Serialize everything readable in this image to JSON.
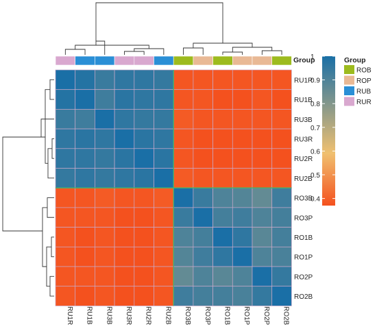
{
  "chart_data": {
    "type": "heatmap",
    "rows": [
      "RU1R",
      "RU1B",
      "RU3B",
      "RU3R",
      "RU2R",
      "RU2B",
      "RO3B",
      "RO3P",
      "RO1B",
      "RO1P",
      "RO2P",
      "RO2B"
    ],
    "cols": [
      "RU1R",
      "RU1B",
      "RU3B",
      "RU3R",
      "RU2R",
      "RU2B",
      "RO3B",
      "RO3P",
      "RO1B",
      "RO1P",
      "RO2P",
      "RO2B"
    ],
    "values": [
      [
        1.0,
        0.98,
        0.94,
        0.96,
        0.96,
        0.95,
        0.38,
        0.38,
        0.38,
        0.38,
        0.38,
        0.38
      ],
      [
        0.98,
        1.0,
        0.93,
        0.97,
        0.96,
        0.96,
        0.38,
        0.38,
        0.37,
        0.37,
        0.38,
        0.37
      ],
      [
        0.94,
        0.93,
        1.0,
        0.96,
        0.95,
        0.95,
        0.39,
        0.38,
        0.38,
        0.38,
        0.38,
        0.38
      ],
      [
        0.96,
        0.97,
        0.96,
        1.0,
        0.97,
        0.96,
        0.38,
        0.37,
        0.37,
        0.37,
        0.37,
        0.37
      ],
      [
        0.96,
        0.96,
        0.95,
        0.97,
        1.0,
        0.97,
        0.38,
        0.37,
        0.37,
        0.37,
        0.37,
        0.37
      ],
      [
        0.95,
        0.96,
        0.95,
        0.96,
        0.97,
        1.0,
        0.39,
        0.38,
        0.38,
        0.38,
        0.38,
        0.38
      ],
      [
        0.38,
        0.38,
        0.39,
        0.38,
        0.38,
        0.39,
        1.0,
        0.94,
        0.9,
        0.89,
        0.86,
        0.93
      ],
      [
        0.38,
        0.38,
        0.38,
        0.37,
        0.37,
        0.38,
        0.94,
        1.0,
        0.92,
        0.93,
        0.9,
        0.92
      ],
      [
        0.38,
        0.37,
        0.38,
        0.37,
        0.37,
        0.38,
        0.9,
        0.92,
        1.0,
        0.96,
        0.88,
        0.92
      ],
      [
        0.38,
        0.37,
        0.38,
        0.37,
        0.37,
        0.38,
        0.89,
        0.93,
        0.96,
        1.0,
        0.9,
        0.91
      ],
      [
        0.38,
        0.38,
        0.38,
        0.37,
        0.37,
        0.38,
        0.86,
        0.9,
        0.88,
        0.9,
        1.0,
        0.95
      ],
      [
        0.38,
        0.37,
        0.38,
        0.37,
        0.37,
        0.38,
        0.93,
        0.92,
        0.92,
        0.91,
        0.95,
        1.0
      ]
    ],
    "group_annotation": {
      "title": "Group",
      "values": [
        "RUR",
        "RUB",
        "RUB",
        "RUR",
        "RUR",
        "RUB",
        "ROB",
        "ROP",
        "ROB",
        "ROP",
        "ROP",
        "ROB"
      ]
    },
    "colorbar": {
      "ticks": [
        1,
        0.9,
        0.8,
        0.7,
        0.6,
        0.5,
        0.4
      ],
      "tick_labels": [
        "1",
        "0.9",
        "0.8",
        "0.7",
        "0.6",
        "0.5",
        "0.4"
      ],
      "range": [
        0.37,
        1.0
      ],
      "low_color": "#f4511e",
      "mid_color": "#f0c070",
      "high_color": "#1a6fa6"
    },
    "legend": {
      "title": "Group",
      "placement": "right",
      "items": [
        {
          "label": "ROB",
          "color": "#9dbb1e"
        },
        {
          "label": "ROP",
          "color": "#e9b995"
        },
        {
          "label": "RUB",
          "color": "#2a8fd6"
        },
        {
          "label": "RUR",
          "color": "#d9a8cf"
        }
      ]
    },
    "dendrogram_top": true,
    "dendrogram_left": true
  }
}
